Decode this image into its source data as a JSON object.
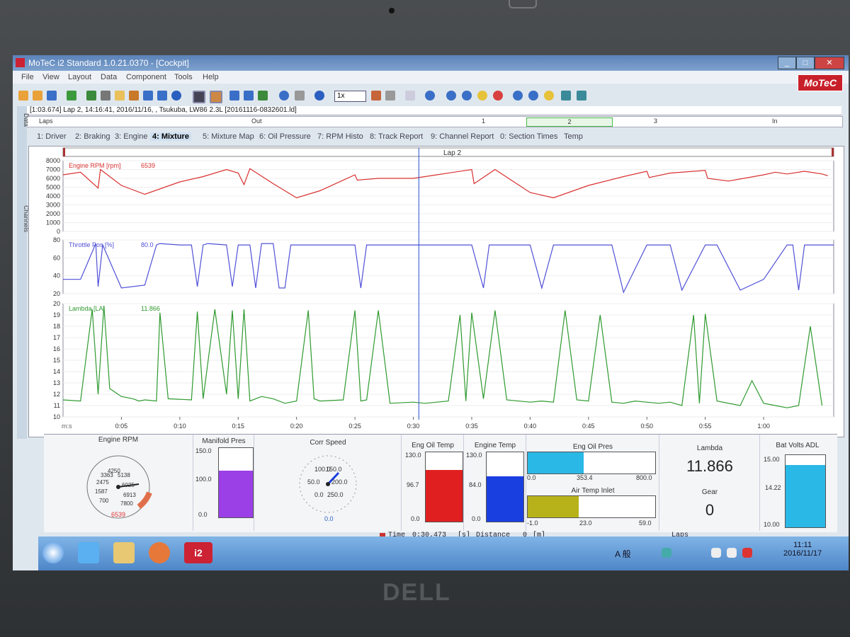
{
  "app": {
    "title": "MoTeC i2 Standard 1.0.21.0370 - [Cockpit]",
    "menu": [
      "File",
      "View",
      "Layout",
      "Data",
      "Component",
      "Tools",
      "Help"
    ],
    "brand": "MoTeC",
    "zoom_select": "1x"
  },
  "session_info": "[1:03.674] Lap 2, 14:16:41, 2016/11/16, , Tsukuba, LW86 2.3L [20161116-0832601.ld]",
  "laps_bar": {
    "label": "Laps",
    "out": "Out",
    "lap1": "1",
    "lap2": "2",
    "lap3": "3",
    "in": "In"
  },
  "sidebar": {
    "data": "Data",
    "channels": "Channels"
  },
  "tabs": [
    "1: Driver",
    "2: Braking",
    "3: Engine",
    "4: Mixture",
    "5: Mixture Map",
    "6: Oil Pressure",
    "7: RPM Histo",
    "8: Track Report",
    "9: Channel Report",
    "0: Section Times",
    "Temp"
  ],
  "selected_tab": "4: Mixture",
  "graph": {
    "lap_label": "Lap 2",
    "time_unit": "m:s",
    "time_ticks": [
      "0:05",
      "0:10",
      "0:15",
      "0:20",
      "0:25",
      "0:30",
      "0:35",
      "0:40",
      "0:45",
      "0:50",
      "0:55",
      "1:00"
    ],
    "cursor_time": "0:30"
  },
  "chart_data": [
    {
      "type": "line",
      "name": "Engine RPM [rpm]",
      "cursor_value": "6539",
      "color": "#d93030",
      "ylim": [
        0,
        8000
      ],
      "yticks": [
        "8000",
        "7000",
        "6000",
        "5000",
        "4000",
        "3000",
        "2000",
        "1000",
        "0"
      ],
      "x": [
        0,
        1.5,
        3,
        3.2,
        5,
        7,
        10,
        12,
        14,
        15,
        15.5,
        16,
        18,
        20,
        22,
        25,
        25.2,
        27,
        30,
        32,
        35,
        35.2,
        37,
        40,
        42,
        45,
        48,
        50,
        50.2,
        52,
        55,
        55.2,
        57,
        60,
        61,
        62,
        63.5,
        65,
        65.5
      ],
      "values": [
        6400,
        6700,
        4900,
        7000,
        5200,
        4200,
        5600,
        6200,
        7000,
        6600,
        5300,
        7100,
        5400,
        3800,
        4600,
        6400,
        5800,
        6000,
        6000,
        6400,
        7000,
        5400,
        7000,
        4400,
        3800,
        5200,
        6200,
        6800,
        6100,
        6600,
        6900,
        6000,
        5700,
        6400,
        6700,
        6500,
        6800,
        6500,
        6300
      ]
    },
    {
      "type": "line",
      "name": "Throttle Pos [%]",
      "cursor_value": "80.0",
      "color": "#5050d8",
      "ylim": [
        10,
        85
      ],
      "yticks": [
        "80",
        "60",
        "40",
        "20"
      ],
      "x": [
        0,
        1.5,
        2.8,
        3,
        3.4,
        5,
        7,
        8,
        8.3,
        10,
        11,
        11.5,
        12,
        12.4,
        14,
        14.5,
        15,
        16,
        16.5,
        17,
        18,
        18.5,
        19,
        19.5,
        20,
        21,
        25,
        25.5,
        26,
        26.5,
        28,
        30,
        31,
        33,
        34,
        35,
        36,
        36.5,
        38,
        40,
        41,
        42,
        45,
        47,
        48,
        50,
        51,
        52,
        53,
        55,
        56,
        58,
        60,
        62,
        62.5,
        63,
        63.5,
        65,
        66
      ],
      "values": [
        30,
        30,
        80,
        20,
        78,
        18,
        22,
        78,
        80,
        78,
        78,
        20,
        78,
        80,
        78,
        20,
        78,
        78,
        18,
        80,
        80,
        18,
        18,
        78,
        78,
        78,
        78,
        18,
        78,
        78,
        78,
        78,
        78,
        78,
        78,
        78,
        18,
        78,
        78,
        78,
        18,
        78,
        78,
        78,
        12,
        78,
        78,
        78,
        15,
        78,
        78,
        15,
        30,
        78,
        78,
        15,
        78,
        78,
        78
      ]
    },
    {
      "type": "line",
      "name": "Lambda [LA]",
      "cursor_value": "11.866",
      "color": "#2f9a2f",
      "ylim": [
        10,
        20
      ],
      "yticks": [
        "20",
        "19",
        "18",
        "17",
        "16",
        "15",
        "14",
        "13",
        "12",
        "11",
        "10"
      ],
      "x": [
        0,
        1.5,
        2.5,
        3,
        3.5,
        4,
        5,
        6,
        6.5,
        7,
        8,
        8.3,
        9,
        11,
        11.5,
        12,
        13,
        14,
        14.5,
        15,
        15.5,
        16,
        17,
        18,
        19,
        20,
        21,
        21.5,
        22,
        24,
        25,
        25.5,
        26,
        27,
        28,
        30,
        31,
        32,
        33,
        34,
        34.5,
        35,
        36,
        37,
        38,
        40,
        41,
        42,
        43,
        44,
        45,
        46,
        47,
        48,
        49,
        50,
        51,
        52,
        53,
        54,
        54.5,
        55,
        56,
        58,
        59,
        60,
        61,
        62,
        63,
        64,
        65
      ],
      "values": [
        11.5,
        11.4,
        19.5,
        12,
        19.8,
        12.5,
        11.8,
        11.6,
        11.4,
        11.5,
        11.4,
        19.2,
        11.6,
        11.5,
        19.3,
        11.6,
        19.5,
        12,
        19.4,
        11.6,
        19.5,
        11.4,
        11.8,
        11.6,
        11.2,
        11.4,
        19.4,
        11.6,
        11.4,
        11.5,
        19.4,
        11.4,
        11.5,
        19.4,
        11.2,
        11.3,
        11.2,
        11.3,
        11.4,
        19.0,
        11.4,
        19.2,
        11.6,
        19.4,
        11.5,
        11.3,
        11.4,
        11.3,
        19.4,
        11.5,
        11.4,
        19.0,
        11.3,
        11.2,
        11.4,
        11.3,
        11.2,
        11.3,
        11.0,
        19.0,
        11.2,
        19.1,
        11.4,
        11.0,
        13.2,
        11.2,
        11.0,
        10.8,
        11.0,
        18.0,
        11.0
      ]
    }
  ],
  "gauges": {
    "engine_rpm": {
      "label": "Engine RPM",
      "value": "6539",
      "ticks": [
        "700",
        "1587",
        "2475",
        "3363",
        "4250",
        "5138",
        "6025",
        "6913",
        "7800"
      ]
    },
    "manifold_pres": {
      "label": "Manifold Pres",
      "max": "150.0",
      "mid": "100.0",
      "min": "0.0",
      "level": 0.67,
      "color": "#9b3fe6"
    },
    "corr_speed": {
      "label": "Corr Speed",
      "value": "0.0",
      "ticks": [
        "0.0",
        "50.0",
        "100.0",
        "150.0",
        "200.0",
        "250.0"
      ]
    },
    "eng_oil_temp": {
      "label": "Eng Oil Temp",
      "max": "130.0",
      "mid": "96.7",
      "min": "0.0",
      "level": 0.74,
      "color": "#e02020"
    },
    "engine_temp": {
      "label": "Engine Temp",
      "max": "130.0",
      "mid": "84.0",
      "min": "0.0",
      "level": 0.65,
      "color": "#1a3fe0"
    },
    "eng_oil_pres": {
      "label": "Eng Oil Pres",
      "min": "0.0",
      "mid": "353.4",
      "max": "800.0",
      "level": 0.44,
      "color": "#2ab8e6"
    },
    "air_temp_inlet": {
      "label": "Air Temp Inlet",
      "min": "-1.0",
      "mid": "23.0",
      "max": "59.0",
      "level": 0.4,
      "color": "#b7b21a"
    },
    "lambda": {
      "label": "Lambda",
      "value": "11.866"
    },
    "gear": {
      "label": "Gear",
      "value": "0"
    },
    "bat_volts": {
      "label": "Bat Volts ADL",
      "max": "15.00",
      "mid": "14.22",
      "min": "10.00",
      "level": 0.86,
      "color": "#2ab8e6"
    },
    "laps_label": "Laps"
  },
  "status": {
    "time_label": "Time",
    "time_value": "0:30.473",
    "time_unit": "[s]",
    "distance_label": "Distance",
    "distance_value": "0",
    "distance_unit": "[m]"
  },
  "taskbar": {
    "clock_time": "11:11",
    "clock_date": "2016/11/17",
    "ime": "A 般"
  }
}
